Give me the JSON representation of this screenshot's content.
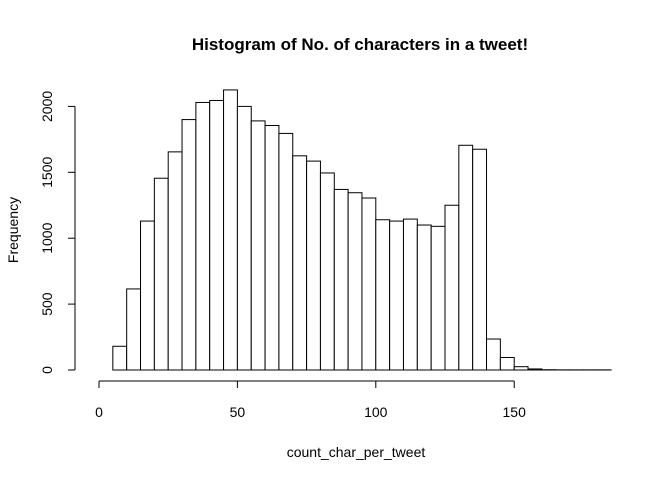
{
  "chart_data": {
    "type": "bar",
    "title": "Histogram of No. of characters in a tweet!",
    "xlabel": "count_char_per_tweet",
    "ylabel": "Frequency",
    "bin_width": 5,
    "bin_starts": [
      5,
      10,
      15,
      20,
      25,
      30,
      35,
      40,
      45,
      50,
      55,
      60,
      65,
      70,
      75,
      80,
      85,
      90,
      95,
      100,
      105,
      110,
      115,
      120,
      125,
      130,
      135,
      140,
      145,
      150,
      155,
      160,
      165,
      170,
      175,
      180
    ],
    "values": [
      180,
      615,
      1130,
      1455,
      1655,
      1900,
      2030,
      2045,
      2125,
      2000,
      1890,
      1855,
      1795,
      1625,
      1585,
      1495,
      1370,
      1345,
      1305,
      1140,
      1130,
      1145,
      1100,
      1090,
      1250,
      1705,
      1675,
      235,
      95,
      25,
      8,
      2,
      1,
      1,
      1,
      1
    ],
    "xlim": [
      0,
      185
    ],
    "ylim": [
      0,
      2125
    ],
    "x_ticks": [
      0,
      50,
      100,
      150
    ],
    "y_ticks": [
      0,
      500,
      1000,
      1500,
      2000
    ],
    "grid": false
  }
}
